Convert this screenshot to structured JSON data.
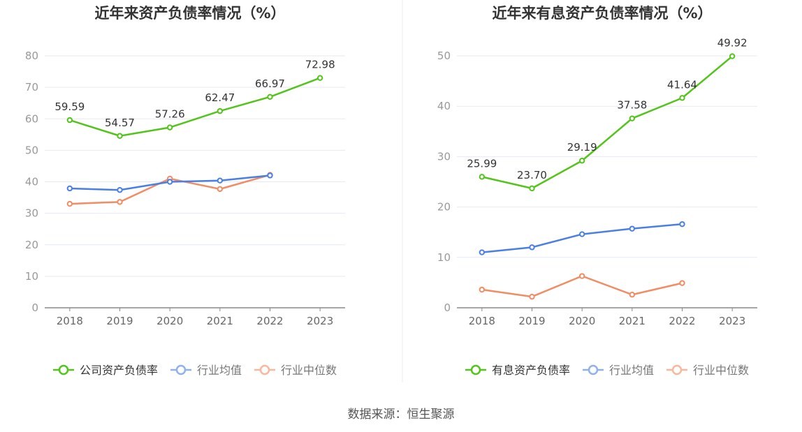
{
  "colors": {
    "company": "#52C41A",
    "avg": "#4A7FE5",
    "median": "#F28C62",
    "grid": "#E6E9F2",
    "axis": "#888888",
    "tick_text": "#999999",
    "title": "#333333",
    "label": "#333333",
    "avg_legend": "#8FB1F0",
    "median_legend": "#F7B89C"
  },
  "chart_data": [
    {
      "type": "line",
      "title": "近年来资产负债率情况（%）",
      "categories": [
        "2018",
        "2019",
        "2020",
        "2021",
        "2022",
        "2023"
      ],
      "ylim": [
        0,
        80
      ],
      "yticks": [
        "0",
        "10",
        "20",
        "30",
        "40",
        "50",
        "60",
        "70",
        "80"
      ],
      "series": [
        {
          "name": "公司资产负债率",
          "key": "company",
          "values": [
            59.59,
            54.57,
            57.26,
            62.47,
            66.97,
            72.98
          ],
          "labels": [
            "59.59",
            "54.57",
            "57.26",
            "62.47",
            "66.97",
            "72.98"
          ]
        },
        {
          "name": "行业均值",
          "key": "avg",
          "values": [
            37.9,
            37.4,
            40.0,
            40.4,
            42.0,
            null
          ]
        },
        {
          "name": "行业中位数",
          "key": "median",
          "values": [
            33.0,
            33.6,
            41.0,
            37.7,
            42.2,
            null
          ]
        }
      ]
    },
    {
      "type": "line",
      "title": "近年来有息资产负债率情况（%）",
      "categories": [
        "2018",
        "2019",
        "2020",
        "2021",
        "2022",
        "2023"
      ],
      "ylim": [
        0,
        50
      ],
      "yticks": [
        "0",
        "10",
        "20",
        "30",
        "40",
        "50"
      ],
      "series": [
        {
          "name": "有息资产负债率",
          "key": "company",
          "values": [
            25.99,
            23.7,
            29.19,
            37.58,
            41.64,
            49.92
          ],
          "labels": [
            "25.99",
            "23.70",
            "29.19",
            "37.58",
            "41.64",
            "49.92"
          ]
        },
        {
          "name": "行业均值",
          "key": "avg",
          "values": [
            11.0,
            12.0,
            14.6,
            15.7,
            16.6,
            null
          ]
        },
        {
          "name": "行业中位数",
          "key": "median",
          "values": [
            3.6,
            2.2,
            6.3,
            2.6,
            4.9,
            null
          ]
        }
      ]
    }
  ],
  "source": "数据来源：恒生聚源"
}
